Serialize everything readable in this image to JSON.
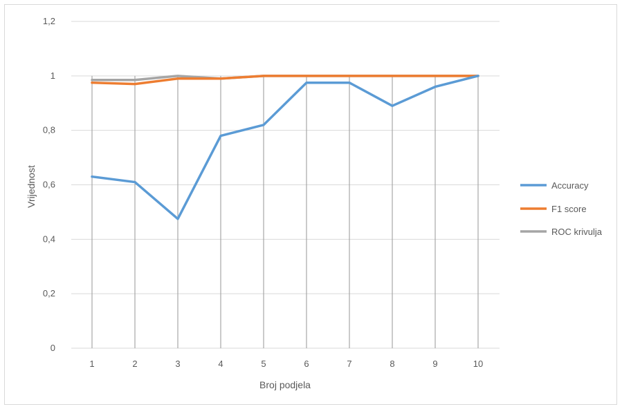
{
  "chart_data": {
    "type": "line",
    "xlabel": "Broj podjela",
    "ylabel": "Vrijednost",
    "ylim": [
      0,
      1.2
    ],
    "ytick_labels": [
      "0",
      "0,2",
      "0,4",
      "0,6",
      "0,8",
      "1",
      "1,2"
    ],
    "yticks": [
      0,
      0.2,
      0.4,
      0.6,
      0.8,
      1.0,
      1.2
    ],
    "categories": [
      "1",
      "2",
      "3",
      "4",
      "5",
      "6",
      "7",
      "8",
      "9",
      "10"
    ],
    "vertical_gridlines": true,
    "horizontal_gridlines": true,
    "legend_position": "right",
    "series": [
      {
        "name": "Accuracy",
        "color": "#5b9bd5",
        "values": [
          0.63,
          0.61,
          0.475,
          0.78,
          0.82,
          0.975,
          0.975,
          0.89,
          0.96,
          1.0
        ]
      },
      {
        "name": "F1 score",
        "color": "#ed7d31",
        "values": [
          0.975,
          0.97,
          0.99,
          0.99,
          1.0,
          1.0,
          1.0,
          1.0,
          1.0,
          1.0
        ]
      },
      {
        "name": "ROC krivulja",
        "color": "#a5a5a5",
        "values": [
          0.985,
          0.985,
          1.0,
          0.99,
          1.0,
          1.0,
          1.0,
          1.0,
          1.0,
          1.0
        ]
      }
    ]
  }
}
